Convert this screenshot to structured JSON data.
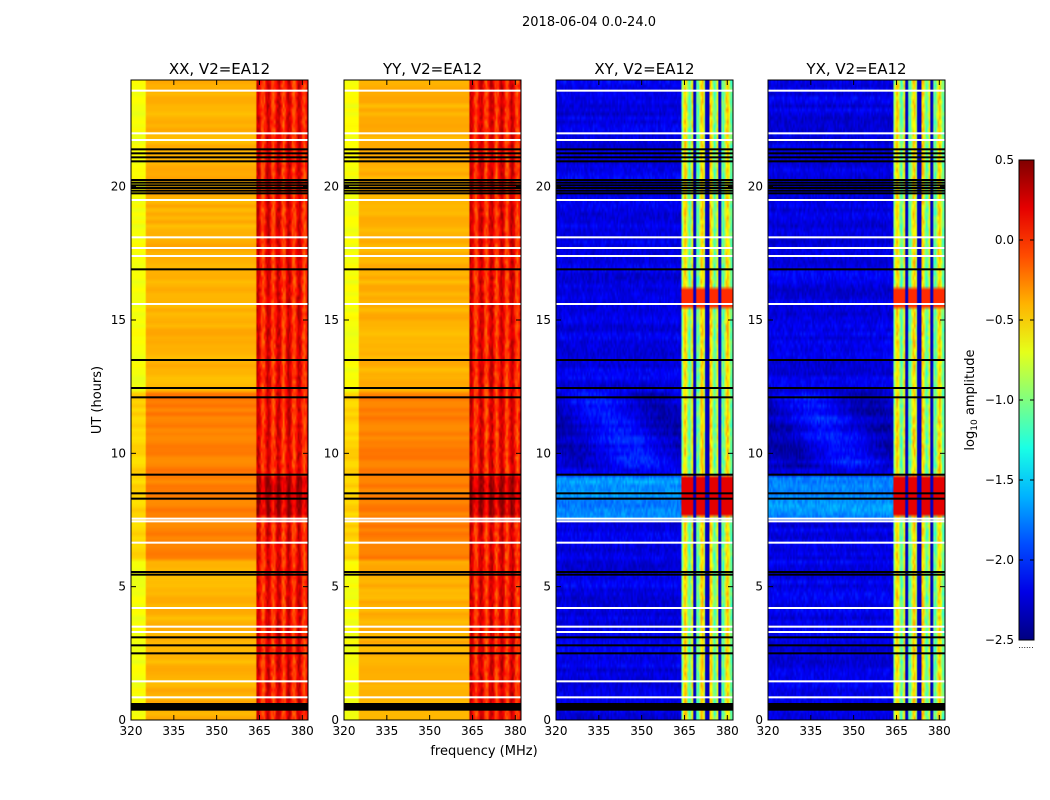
{
  "figure": {
    "suptitle": "2018-06-04 0.0-24.0",
    "xlabel": "frequency (MHz)",
    "ylabel": "UT (hours)",
    "colorbar_label_base": "log",
    "colorbar_label_sub": "10",
    "colorbar_label_rest": " amplitude",
    "colorbar_footnote": "......"
  },
  "chart_data": [
    {
      "type": "heatmap",
      "title": "XX, V2=EA12",
      "xlim": [
        320,
        382
      ],
      "ylim": [
        0,
        24
      ],
      "xticks": [
        320,
        335,
        350,
        365,
        380
      ],
      "yticks": [
        0,
        5,
        10,
        15,
        20
      ],
      "style": "parallel",
      "band_edge_mhz": 364,
      "continuum_level": -0.4,
      "band_level": 0.1
    },
    {
      "type": "heatmap",
      "title": "YY, V2=EA12",
      "xlim": [
        320,
        382
      ],
      "ylim": [
        0,
        24
      ],
      "xticks": [
        320,
        335,
        350,
        365,
        380
      ],
      "yticks": [
        0,
        5,
        10,
        15,
        20
      ],
      "style": "parallel",
      "band_edge_mhz": 364,
      "continuum_level": -0.4,
      "band_level": 0.1
    },
    {
      "type": "heatmap",
      "title": "XY, V2=EA12",
      "xlim": [
        320,
        382
      ],
      "ylim": [
        0,
        24
      ],
      "xticks": [
        320,
        335,
        350,
        365,
        380
      ],
      "yticks": [
        0,
        5,
        10,
        15,
        20
      ],
      "style": "cross",
      "band_edge_mhz": 364,
      "continuum_level": -2.2,
      "band_level": -0.8
    },
    {
      "type": "heatmap",
      "title": "YX, V2=EA12",
      "xlim": [
        320,
        382
      ],
      "ylim": [
        0,
        24
      ],
      "xticks": [
        320,
        335,
        350,
        365,
        380
      ],
      "yticks": [
        0,
        5,
        10,
        15,
        20
      ],
      "style": "cross",
      "band_edge_mhz": 364,
      "continuum_level": -2.2,
      "band_level": -0.8
    }
  ],
  "colorbar": {
    "min": -2.5,
    "max": 0.5,
    "ticks": [
      "0.5",
      "0.0",
      "−0.5",
      "−1.0",
      "−1.5",
      "−2.0",
      "−2.5"
    ],
    "tick_values": [
      0.5,
      0.0,
      -0.5,
      -1.0,
      -1.5,
      -2.0,
      -2.5
    ],
    "colormap": "jet"
  },
  "flagged_rows_black_hours": [
    0.4,
    0.5,
    0.6,
    2.5,
    2.8,
    3.1,
    5.45,
    5.55,
    8.3,
    8.5,
    9.2,
    12.1,
    12.45,
    13.5,
    16.9,
    19.75,
    19.85,
    19.95,
    20.05,
    20.15,
    20.25,
    20.95,
    21.1,
    21.25,
    21.4
  ],
  "flagged_rows_white_hours": [
    0.85,
    1.45,
    3.3,
    3.5,
    4.2,
    6.65,
    7.45,
    7.55,
    15.6,
    17.4,
    17.7,
    18.1,
    19.5,
    21.75,
    22.0,
    23.6
  ]
}
